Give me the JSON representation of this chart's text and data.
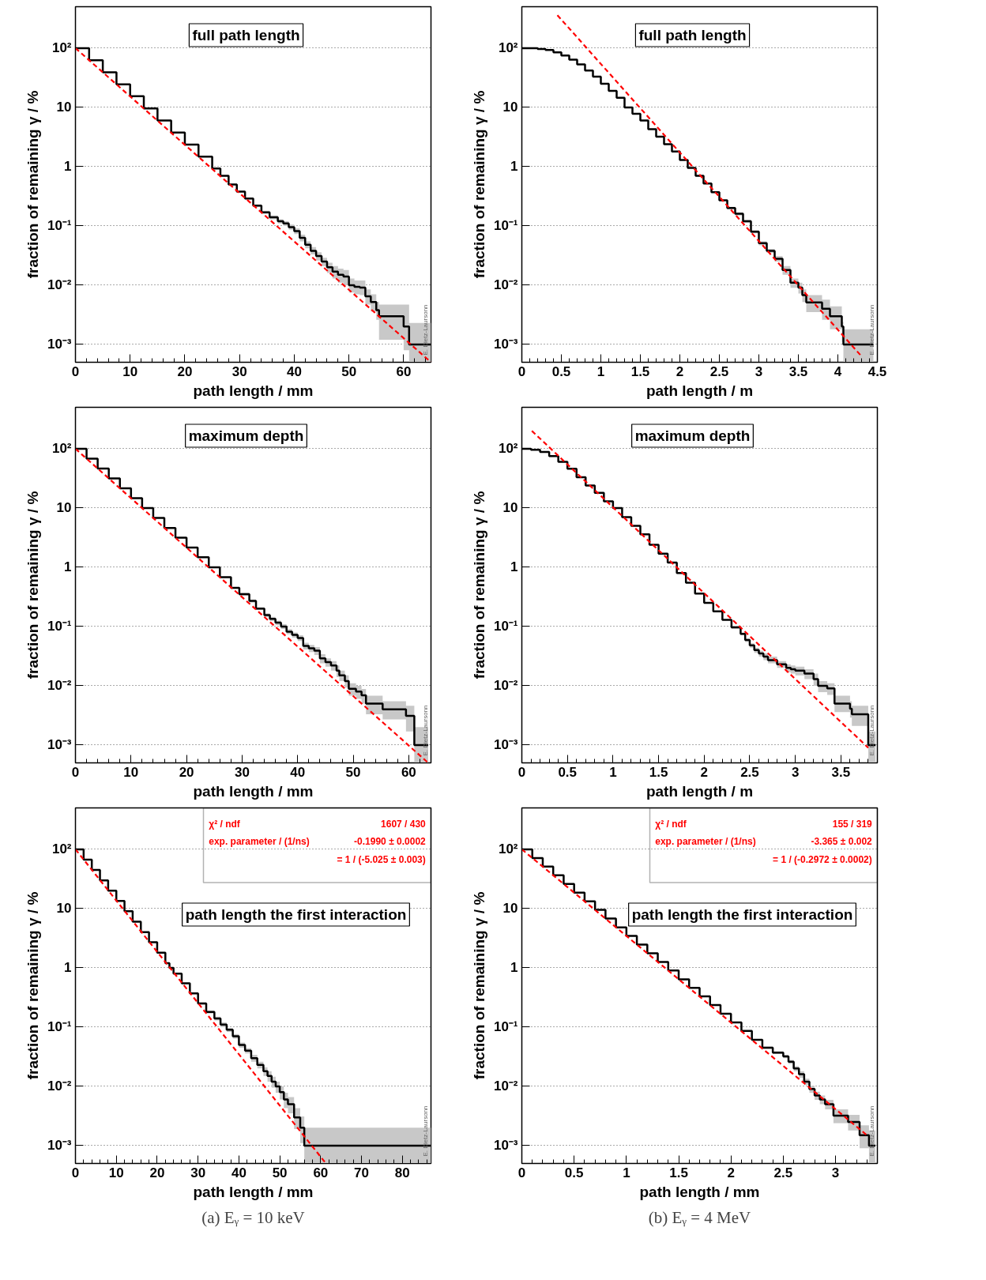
{
  "chart_data": [
    {
      "type": "step",
      "title": "full path length",
      "xlabel": "path length / mm",
      "ylabel": "fraction of remaining γ / %",
      "log": "y",
      "grid": "y",
      "xlim": [
        0,
        65
      ],
      "xticks": [
        0,
        10,
        20,
        30,
        40,
        50,
        60
      ],
      "ylim": [
        0.0005,
        500
      ],
      "yticks": [
        {
          "value": 0.001,
          "label": "10⁻³"
        },
        {
          "value": 0.01,
          "label": "10⁻²"
        },
        {
          "value": 0.1,
          "label": "10⁻¹"
        },
        1,
        10,
        {
          "value": 100,
          "label": "10²"
        }
      ],
      "annotations": [
        "E. Dietz-Laursonn"
      ],
      "series": [
        {
          "color": "#000000",
          "x": [
            0,
            2.5,
            5,
            7.5,
            10,
            12.5,
            15,
            17.5,
            20,
            22.5,
            25,
            26.5,
            28,
            29.5,
            31,
            32.5,
            34,
            35.5,
            37,
            38,
            39,
            40,
            41,
            42,
            43,
            44,
            45,
            46,
            47,
            48,
            49,
            50,
            51,
            52,
            53,
            54,
            55,
            55.5,
            60,
            61,
            65
          ],
          "values": [
            100,
            62.6,
            39.2,
            24.5,
            15.4,
            9.6,
            6.0,
            3.77,
            2.36,
            1.48,
            0.93,
            0.7,
            0.5,
            0.38,
            0.29,
            0.22,
            0.17,
            0.14,
            0.12,
            0.11,
            0.095,
            0.082,
            0.063,
            0.048,
            0.038,
            0.031,
            0.025,
            0.02,
            0.017,
            0.015,
            0.014,
            0.01,
            0.0094,
            0.0091,
            0.0065,
            0.0052,
            0.0038,
            0.003,
            0.002,
            0.001,
            0.001
          ],
          "lower": [
            null,
            null,
            null,
            null,
            null,
            null,
            null,
            null,
            null,
            null,
            null,
            null,
            null,
            null,
            0.28,
            0.21,
            0.16,
            0.13,
            0.11,
            0.1,
            0.086,
            0.073,
            0.055,
            0.042,
            0.033,
            0.026,
            0.021,
            0.016,
            0.013,
            0.011,
            0.01,
            0.0075,
            0.007,
            0.0068,
            0.0047,
            0.0036,
            0.0026,
            0.0012,
            0.0008,
            0.0005,
            0.0005
          ],
          "upper": [
            null,
            null,
            null,
            null,
            null,
            null,
            null,
            null,
            null,
            null,
            null,
            null,
            null,
            null,
            0.3,
            0.23,
            0.18,
            0.15,
            0.13,
            0.12,
            0.105,
            0.091,
            0.071,
            0.055,
            0.044,
            0.036,
            0.029,
            0.024,
            0.021,
            0.019,
            0.018,
            0.013,
            0.012,
            0.012,
            0.0085,
            0.007,
            0.0052,
            0.0047,
            0.0047,
            0.0023,
            0.0023
          ]
        },
        {
          "type": "line",
          "color": "#ff0000",
          "line_style": "dashed",
          "x": [
            0,
            65
          ],
          "values": [
            100,
            0.0005
          ]
        }
      ]
    },
    {
      "type": "step",
      "title": "full path length",
      "xlabel": "path length / m",
      "ylabel": "fraction of remaining γ / %",
      "log": "y",
      "grid": "y",
      "xlim": [
        0,
        4.5
      ],
      "xticks": [
        0,
        0.5,
        1,
        1.5,
        2,
        2.5,
        3,
        3.5,
        4,
        4.5
      ],
      "ylim": [
        0.0005,
        500
      ],
      "yticks": [
        {
          "value": 0.001,
          "label": "10⁻³"
        },
        {
          "value": 0.01,
          "label": "10⁻²"
        },
        {
          "value": 0.1,
          "label": "10⁻¹"
        },
        1,
        10,
        {
          "value": 100,
          "label": "10²"
        }
      ],
      "annotations": [
        "E. Dietz-Laursonn"
      ],
      "series": [
        {
          "color": "#000000",
          "x": [
            0,
            0.1,
            0.2,
            0.3,
            0.4,
            0.5,
            0.6,
            0.7,
            0.8,
            0.9,
            1.0,
            1.1,
            1.2,
            1.3,
            1.4,
            1.5,
            1.6,
            1.7,
            1.8,
            1.9,
            2.0,
            2.1,
            2.2,
            2.3,
            2.4,
            2.5,
            2.6,
            2.7,
            2.8,
            2.9,
            3.0,
            3.1,
            3.2,
            3.3,
            3.4,
            3.5,
            3.55,
            3.6,
            3.8,
            3.9,
            4.05,
            4.07,
            4.45
          ],
          "values": [
            100,
            99.5,
            97,
            93,
            85,
            75,
            64,
            53,
            42,
            33,
            25,
            19,
            14.5,
            10,
            7.8,
            6,
            4.3,
            3.2,
            2.4,
            1.8,
            1.3,
            0.95,
            0.7,
            0.52,
            0.37,
            0.27,
            0.2,
            0.16,
            0.12,
            0.08,
            0.051,
            0.038,
            0.028,
            0.018,
            0.011,
            0.0091,
            0.0068,
            0.0051,
            0.004,
            0.003,
            0.002,
            0.001,
            0.001
          ],
          "lower": [
            null,
            null,
            null,
            null,
            null,
            null,
            null,
            null,
            null,
            null,
            null,
            null,
            null,
            null,
            null,
            null,
            null,
            null,
            null,
            null,
            null,
            null,
            null,
            null,
            null,
            null,
            0.19,
            0.15,
            0.113,
            0.075,
            0.047,
            0.035,
            0.025,
            0.015,
            0.009,
            0.0072,
            0.0052,
            0.0035,
            0.0026,
            0.0018,
            0.0011,
            0.0005,
            0.0005
          ],
          "upper": [
            null,
            null,
            null,
            null,
            null,
            null,
            null,
            null,
            null,
            null,
            null,
            null,
            null,
            null,
            null,
            null,
            null,
            null,
            null,
            null,
            null,
            null,
            null,
            null,
            null,
            null,
            0.21,
            0.17,
            0.127,
            0.085,
            0.055,
            0.041,
            0.031,
            0.021,
            0.013,
            0.011,
            0.0085,
            0.0068,
            0.0057,
            0.0044,
            0.0024,
            0.0018,
            0.0018
          ]
        },
        {
          "type": "line",
          "color": "#ff0000",
          "line_style": "dashed",
          "x": [
            0.45,
            4.3
          ],
          "values": [
            360,
            0.00063
          ]
        }
      ]
    },
    {
      "type": "step",
      "title": "maximum depth",
      "xlabel": "path length / mm",
      "ylabel": "fraction of remaining γ / %",
      "log": "y",
      "grid": "y",
      "xlim": [
        0,
        64
      ],
      "xticks": [
        0,
        10,
        20,
        30,
        40,
        50,
        60
      ],
      "ylim": [
        0.0005,
        500
      ],
      "yticks": [
        {
          "value": 0.001,
          "label": "10⁻³"
        },
        {
          "value": 0.01,
          "label": "10⁻²"
        },
        {
          "value": 0.1,
          "label": "10⁻¹"
        },
        1,
        10,
        {
          "value": 100,
          "label": "10²"
        }
      ],
      "annotations": [
        "E. Dietz-Laursonn"
      ],
      "series": [
        {
          "color": "#000000",
          "x": [
            0,
            2,
            4,
            6,
            8,
            10,
            12,
            14,
            16,
            18,
            20,
            22,
            24,
            26,
            28,
            29.5,
            31.3,
            32.5,
            34,
            35,
            36,
            37,
            38,
            39,
            40,
            41,
            42,
            43,
            44,
            45,
            46,
            47,
            47.5,
            48.5,
            49.2,
            50.5,
            51.5,
            52.3,
            55.3,
            59.5,
            61,
            63.5
          ],
          "values": [
            100,
            68,
            46.4,
            31.6,
            21.5,
            14.6,
            10,
            6.8,
            4.6,
            3.16,
            2.15,
            1.47,
            1.0,
            0.68,
            0.45,
            0.35,
            0.27,
            0.2,
            0.156,
            0.135,
            0.116,
            0.1,
            0.082,
            0.072,
            0.064,
            0.047,
            0.043,
            0.039,
            0.029,
            0.025,
            0.022,
            0.018,
            0.015,
            0.012,
            0.0089,
            0.008,
            0.0069,
            0.005,
            0.004,
            0.0031,
            0.001,
            0.001
          ],
          "lower": [
            null,
            null,
            null,
            null,
            null,
            null,
            null,
            null,
            null,
            null,
            null,
            null,
            null,
            null,
            null,
            0.33,
            0.255,
            0.19,
            0.145,
            0.125,
            0.106,
            0.091,
            0.074,
            0.065,
            0.057,
            0.041,
            0.037,
            0.033,
            0.024,
            0.021,
            0.018,
            0.014,
            0.012,
            0.0093,
            0.0068,
            0.006,
            0.005,
            0.0033,
            0.0027,
            0.0017,
            0.0005,
            0.0005
          ],
          "upper": [
            null,
            null,
            null,
            null,
            null,
            null,
            null,
            null,
            null,
            null,
            null,
            null,
            null,
            null,
            null,
            0.37,
            0.285,
            0.21,
            0.167,
            0.145,
            0.126,
            0.109,
            0.09,
            0.079,
            0.071,
            0.053,
            0.049,
            0.045,
            0.034,
            0.029,
            0.026,
            0.022,
            0.018,
            0.015,
            0.011,
            0.01,
            0.0088,
            0.0068,
            0.0055,
            0.0046,
            0.002,
            0.002
          ]
        },
        {
          "type": "line",
          "color": "#ff0000",
          "line_style": "dashed",
          "x": [
            0,
            63.5
          ],
          "values": [
            100,
            0.0005
          ]
        }
      ]
    },
    {
      "type": "step",
      "title": "maximum depth",
      "xlabel": "path length / m",
      "ylabel": "fraction of remaining γ / %",
      "log": "y",
      "grid": "y",
      "xlim": [
        0,
        3.9
      ],
      "xticks": [
        0,
        0.5,
        1,
        1.5,
        2,
        2.5,
        3,
        3.5
      ],
      "ylim": [
        0.0005,
        500
      ],
      "yticks": [
        {
          "value": 0.001,
          "label": "10⁻³"
        },
        {
          "value": 0.01,
          "label": "10⁻²"
        },
        {
          "value": 0.1,
          "label": "10⁻¹"
        },
        1,
        10,
        {
          "value": 100,
          "label": "10²"
        }
      ],
      "annotations": [
        "E. Dietz-Laursonn"
      ],
      "series": [
        {
          "color": "#000000",
          "x": [
            0,
            0.1,
            0.2,
            0.3,
            0.4,
            0.5,
            0.6,
            0.7,
            0.8,
            0.9,
            1.0,
            1.1,
            1.2,
            1.3,
            1.4,
            1.5,
            1.6,
            1.7,
            1.8,
            1.9,
            2.0,
            2.1,
            2.2,
            2.3,
            2.4,
            2.45,
            2.5,
            2.55,
            2.6,
            2.65,
            2.7,
            2.8,
            2.9,
            2.95,
            3.0,
            3.1,
            3.2,
            3.25,
            3.35,
            3.43,
            3.6,
            3.62,
            3.8,
            3.88
          ],
          "values": [
            100,
            96,
            88,
            75,
            60,
            46,
            33,
            24,
            18,
            13,
            10,
            7,
            5,
            3.6,
            2.4,
            1.7,
            1.2,
            0.8,
            0.55,
            0.36,
            0.25,
            0.18,
            0.13,
            0.097,
            0.075,
            0.059,
            0.048,
            0.04,
            0.035,
            0.031,
            0.027,
            0.023,
            0.02,
            0.019,
            0.018,
            0.016,
            0.013,
            0.01,
            0.009,
            0.005,
            0.0041,
            0.0033,
            0.001,
            0.001
          ],
          "lower": [
            null,
            null,
            null,
            null,
            null,
            null,
            null,
            null,
            null,
            null,
            null,
            null,
            null,
            null,
            null,
            null,
            null,
            null,
            null,
            null,
            null,
            null,
            null,
            0.092,
            0.071,
            0.055,
            0.044,
            0.036,
            0.031,
            0.027,
            0.024,
            0.02,
            0.017,
            0.016,
            0.015,
            0.013,
            0.01,
            0.0078,
            0.007,
            0.0036,
            0.0029,
            0.0021,
            0.0005,
            0.0005
          ],
          "upper": [
            null,
            null,
            null,
            null,
            null,
            null,
            null,
            null,
            null,
            null,
            null,
            null,
            null,
            null,
            null,
            null,
            null,
            null,
            null,
            null,
            null,
            null,
            null,
            0.102,
            0.079,
            0.063,
            0.052,
            0.044,
            0.039,
            0.035,
            0.031,
            0.026,
            0.023,
            0.022,
            0.021,
            0.019,
            0.016,
            0.012,
            0.011,
            0.0068,
            0.0055,
            0.0046,
            0.0017,
            0.0017
          ]
        },
        {
          "type": "line",
          "color": "#ff0000",
          "line_style": "dashed",
          "x": [
            0.11,
            3.8
          ],
          "values": [
            200,
            0.0009
          ]
        }
      ]
    },
    {
      "type": "step",
      "title": "path length the first interaction",
      "subtitle": "(a) Eᵧ = 10 keV",
      "xlabel": "path length / mm",
      "ylabel": "fraction of remaining γ / %",
      "log": "y",
      "grid": "y",
      "xlim": [
        0,
        87
      ],
      "xticks": [
        0,
        10,
        20,
        30,
        40,
        50,
        60,
        70,
        80
      ],
      "ylim": [
        0.0005,
        500
      ],
      "yticks": [
        {
          "value": 0.001,
          "label": "10⁻³"
        },
        {
          "value": 0.01,
          "label": "10⁻²"
        },
        {
          "value": 0.1,
          "label": "10⁻¹"
        },
        1,
        10,
        {
          "value": 100,
          "label": "10²"
        }
      ],
      "annotations": [
        "E. Dietz-Laursonn",
        "χ² / ndf",
        "1607 / 430",
        "exp. parameter / (1/ns)",
        "-0.1990 ± 0.0002",
        "= 1 / (-5.025 ± 0.003)"
      ],
      "series": [
        {
          "color": "#000000",
          "x": [
            0,
            2,
            4,
            6,
            8,
            10,
            12,
            14,
            16,
            18,
            20,
            22,
            23,
            24,
            26,
            28,
            30,
            32,
            34,
            35.5,
            37,
            38.5,
            40,
            41.5,
            43,
            44.5,
            46,
            47,
            48,
            49,
            50,
            51,
            52,
            53.5,
            55,
            56,
            87
          ],
          "values": [
            100,
            67,
            45,
            30,
            20,
            13.5,
            9,
            6,
            4,
            2.7,
            1.8,
            1.2,
            1.0,
            0.8,
            0.55,
            0.37,
            0.25,
            0.18,
            0.14,
            0.11,
            0.09,
            0.07,
            0.05,
            0.04,
            0.03,
            0.023,
            0.018,
            0.015,
            0.012,
            0.01,
            0.008,
            0.006,
            0.005,
            0.003,
            0.002,
            0.001,
            0.001
          ],
          "lower": [
            null,
            null,
            null,
            null,
            null,
            null,
            null,
            null,
            null,
            null,
            null,
            null,
            null,
            null,
            null,
            null,
            0.24,
            0.17,
            0.13,
            0.1,
            0.083,
            0.064,
            0.045,
            0.036,
            0.026,
            0.02,
            0.015,
            0.012,
            0.0095,
            0.0078,
            0.006,
            0.0043,
            0.0035,
            0.0019,
            0.0011,
            0.0005,
            0.0005
          ],
          "upper": [
            null,
            null,
            null,
            null,
            null,
            null,
            null,
            null,
            null,
            null,
            null,
            null,
            null,
            null,
            null,
            null,
            0.26,
            0.19,
            0.15,
            0.12,
            0.097,
            0.076,
            0.055,
            0.044,
            0.034,
            0.026,
            0.021,
            0.018,
            0.0145,
            0.012,
            0.01,
            0.0078,
            0.0066,
            0.0043,
            0.0031,
            0.002,
            0.002
          ]
        },
        {
          "type": "line",
          "color": "#ff0000",
          "line_style": "dashed",
          "x": [
            0,
            61.3
          ],
          "values": [
            100,
            0.0005
          ]
        }
      ]
    },
    {
      "type": "step",
      "title": "path length the first interaction",
      "subtitle": "(b) Eᵧ = 4 MeV",
      "xlabel": "path length / mm",
      "ylabel": "fraction of remaining γ / %",
      "log": "y",
      "grid": "y",
      "xlim": [
        0,
        3.4
      ],
      "xticks": [
        0,
        0.5,
        1,
        1.5,
        2,
        2.5,
        3
      ],
      "ylim": [
        0.0005,
        500
      ],
      "yticks": [
        {
          "value": 0.001,
          "label": "10⁻³"
        },
        {
          "value": 0.01,
          "label": "10⁻²"
        },
        {
          "value": 0.1,
          "label": "10⁻¹"
        },
        1,
        10,
        {
          "value": 100,
          "label": "10²"
        }
      ],
      "annotations": [
        "E. Dietz-Laursonn",
        "χ² / ndf",
        "155 / 319",
        "exp. parameter / (1/ns)",
        "-3.365 ± 0.002",
        "= 1 / (-0.2972 ± 0.0002)"
      ],
      "series": [
        {
          "color": "#000000",
          "x": [
            0,
            0.1,
            0.2,
            0.3,
            0.4,
            0.5,
            0.6,
            0.7,
            0.8,
            0.9,
            1.0,
            1.1,
            1.2,
            1.3,
            1.4,
            1.5,
            1.6,
            1.7,
            1.8,
            1.9,
            2.0,
            2.1,
            2.2,
            2.3,
            2.4,
            2.5,
            2.55,
            2.6,
            2.65,
            2.7,
            2.75,
            2.8,
            2.85,
            2.9,
            2.98,
            3.12,
            3.23,
            3.32,
            3.38
          ],
          "values": [
            100,
            71.4,
            51,
            36.4,
            26,
            18.6,
            13.3,
            9.5,
            6.8,
            4.8,
            3.45,
            2.46,
            1.76,
            1.26,
            0.9,
            0.64,
            0.46,
            0.33,
            0.235,
            0.168,
            0.12,
            0.086,
            0.061,
            0.045,
            0.037,
            0.032,
            0.026,
            0.02,
            0.016,
            0.012,
            0.009,
            0.007,
            0.006,
            0.005,
            0.0032,
            0.0025,
            0.0015,
            0.001,
            0.001
          ],
          "lower": [
            null,
            null,
            null,
            null,
            null,
            null,
            null,
            null,
            null,
            null,
            null,
            null,
            null,
            null,
            null,
            null,
            null,
            null,
            null,
            null,
            null,
            null,
            null,
            0.043,
            0.035,
            0.03,
            0.024,
            0.018,
            0.014,
            0.0105,
            0.0078,
            0.0059,
            0.005,
            0.0041,
            0.0024,
            0.0018,
            0.0009,
            0.0005,
            0.0005
          ],
          "upper": [
            null,
            null,
            null,
            null,
            null,
            null,
            null,
            null,
            null,
            null,
            null,
            null,
            null,
            null,
            null,
            null,
            null,
            null,
            null,
            null,
            null,
            null,
            null,
            0.047,
            0.039,
            0.034,
            0.028,
            0.022,
            0.018,
            0.0135,
            0.0102,
            0.0081,
            0.007,
            0.0059,
            0.0041,
            0.0033,
            0.0022,
            0.0018,
            0.0018
          ]
        },
        {
          "type": "line",
          "color": "#ff0000",
          "line_style": "dashed",
          "x": [
            0,
            3.3
          ],
          "values": [
            100,
            0.0015
          ]
        }
      ]
    }
  ]
}
